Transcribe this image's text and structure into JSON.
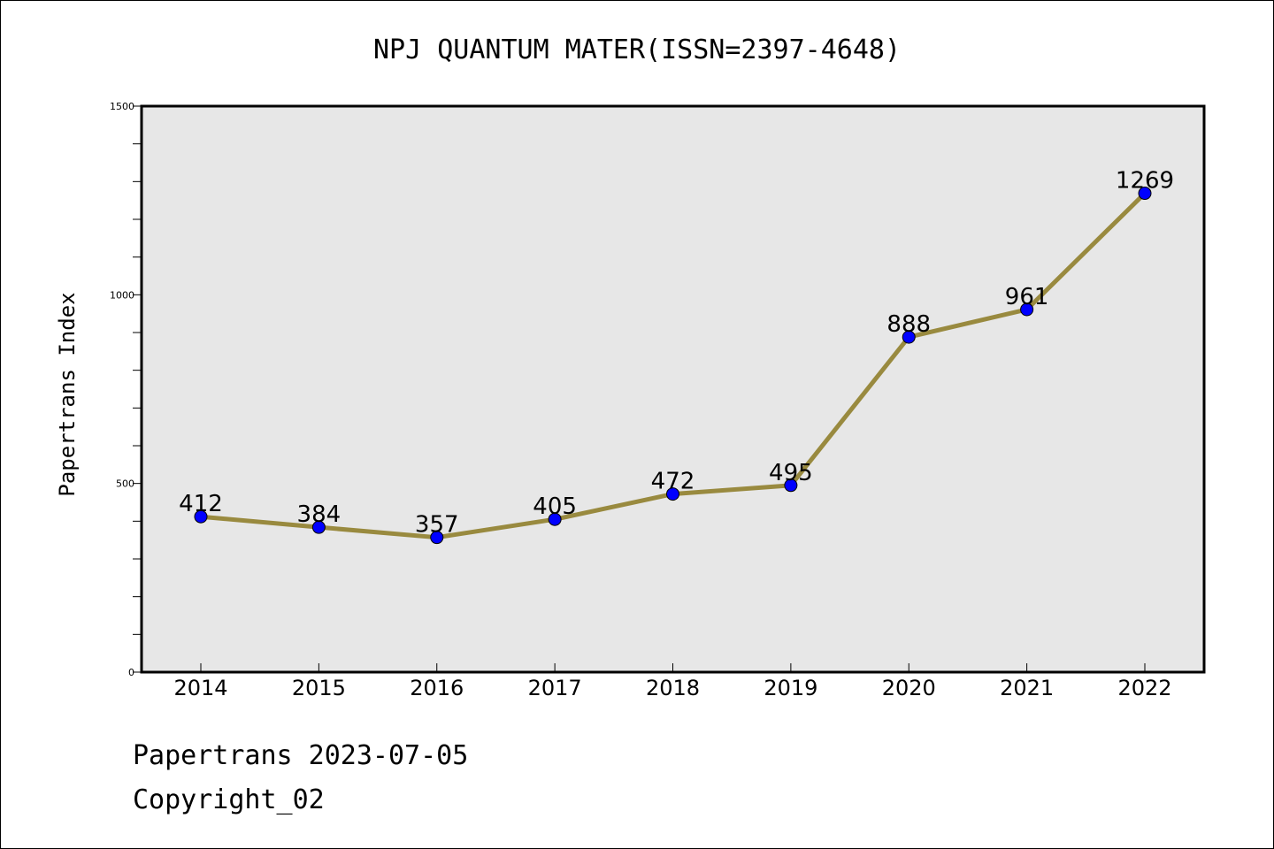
{
  "chart_data": {
    "type": "line",
    "title": "NPJ QUANTUM MATER(ISSN=2397-4648)",
    "ylabel": "Papertrans Index",
    "xlabel": "",
    "categories": [
      "2014",
      "2015",
      "2016",
      "2017",
      "2018",
      "2019",
      "2020",
      "2021",
      "2022"
    ],
    "values": [
      412,
      384,
      357,
      405,
      472,
      495,
      888,
      961,
      1269
    ],
    "ylim": [
      0,
      1500
    ],
    "y_ticks": [
      0,
      500,
      1000,
      1500
    ],
    "y_tick_labels": [
      "0",
      "500",
      "1000",
      "1500"
    ],
    "grid": false,
    "legend": "none",
    "colors": {
      "line": "#998a3f",
      "marker": "#0000ff",
      "plot_background": "#e7e7e7"
    }
  },
  "footer": {
    "date_label": "Papertrans 2023-07-05",
    "copyright_label": "Copyright_02"
  }
}
